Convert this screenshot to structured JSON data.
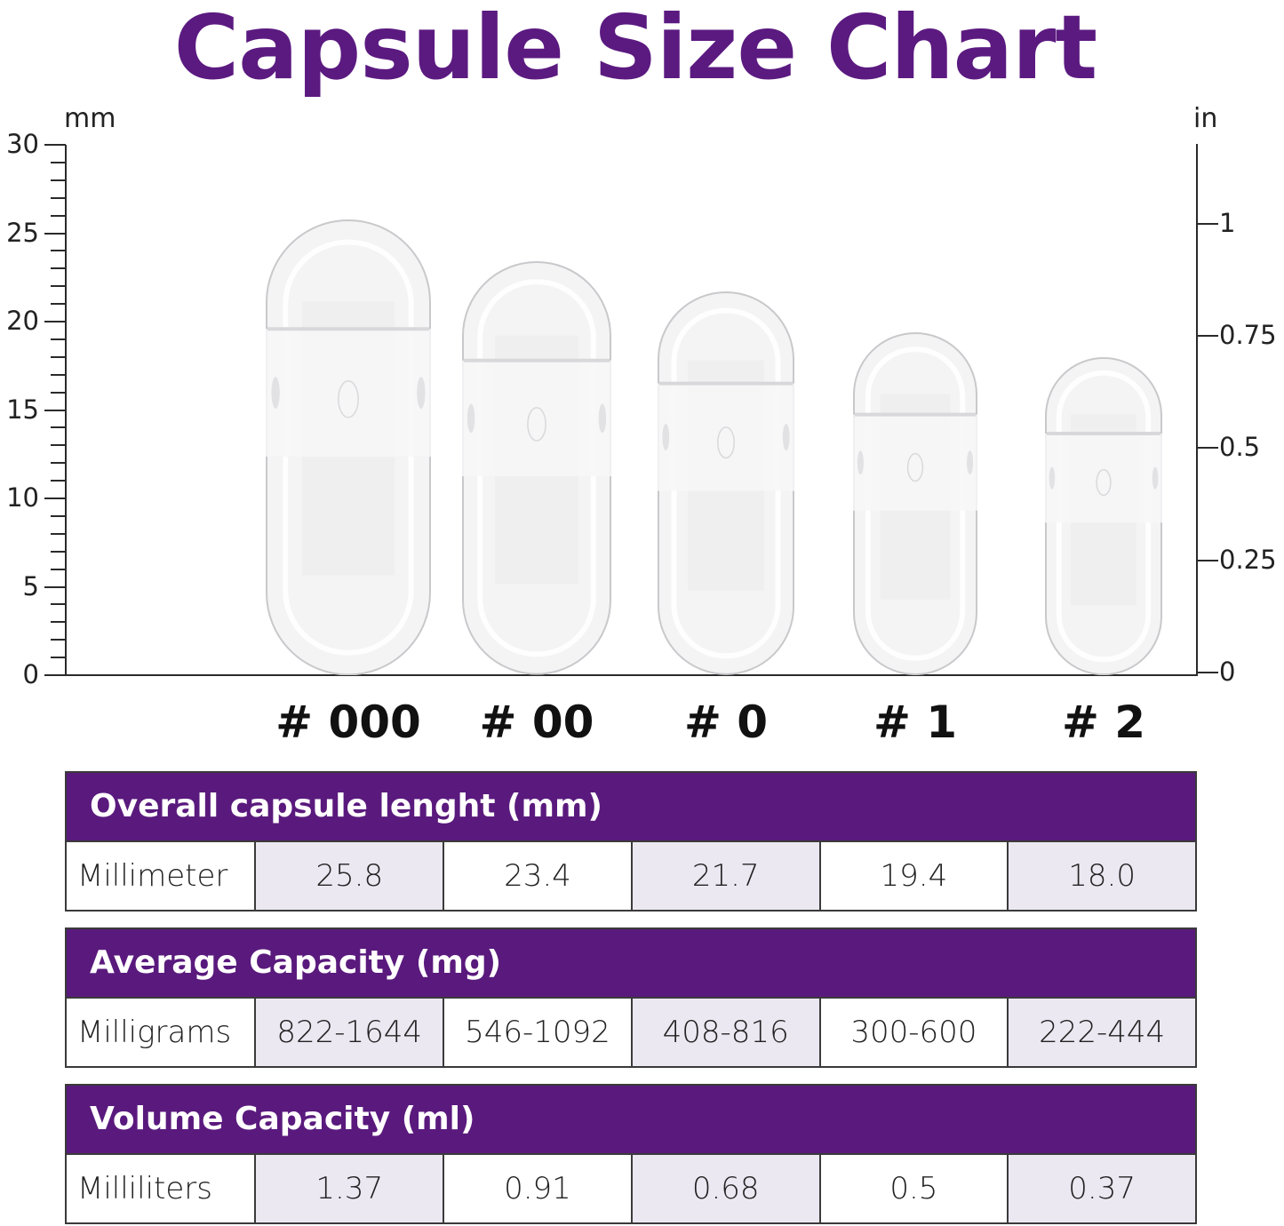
{
  "title": "Capsule Size Chart",
  "colors": {
    "accent": "#5a1a7d",
    "shade": "#ece8f2",
    "axis": "#2a2a2a"
  },
  "axes": {
    "left_unit": "mm",
    "right_unit": "in",
    "left_ticks": [
      "30",
      "25",
      "20",
      "15",
      "10",
      "5",
      "0"
    ],
    "right_ticks": [
      "1",
      "0.75",
      "0.5",
      "0.25",
      "0"
    ]
  },
  "capsules": [
    {
      "label": "# 000"
    },
    {
      "label": "# 00"
    },
    {
      "label": "# 0"
    },
    {
      "label": "# 1"
    },
    {
      "label": "# 2"
    }
  ],
  "tables": [
    {
      "header": "Overall capsule lenght (mm)",
      "row_label": "Millimeter",
      "values": [
        "25.8",
        "23.4",
        "21.7",
        "19.4",
        "18.0"
      ]
    },
    {
      "header": "Average Capacity (mg)",
      "row_label": "Milligrams",
      "values": [
        "822-1644",
        "546-1092",
        "408-816",
        "300-600",
        "222-444"
      ]
    },
    {
      "header": "Volume Capacity (ml)",
      "row_label": "Milliliters",
      "values": [
        "1.37",
        "0.91",
        "0.68",
        "0.5",
        "0.37"
      ]
    }
  ],
  "chart_data": {
    "type": "bar",
    "title": "Capsule Size Chart",
    "categories": [
      "# 000",
      "# 00",
      "# 0",
      "# 1",
      "# 2"
    ],
    "series": [
      {
        "name": "Overall capsule length (mm)",
        "values": [
          25.8,
          23.4,
          21.7,
          19.4,
          18.0
        ]
      },
      {
        "name": "Average Capacity (mg) min",
        "values": [
          822,
          546,
          408,
          300,
          222
        ]
      },
      {
        "name": "Average Capacity (mg) max",
        "values": [
          1644,
          1092,
          816,
          600,
          444
        ]
      },
      {
        "name": "Volume Capacity (ml)",
        "values": [
          1.37,
          0.91,
          0.68,
          0.5,
          0.37
        ]
      }
    ],
    "xlabel": "",
    "ylabel": "mm",
    "ylabel_right": "in",
    "ylim": [
      0,
      30
    ],
    "ylim_right": [
      0,
      1.13
    ],
    "yticks": [
      0,
      5,
      10,
      15,
      20,
      25,
      30
    ],
    "yticks_right": [
      0,
      0.25,
      0.5,
      0.75,
      1
    ],
    "grid": false,
    "legend": "none"
  }
}
